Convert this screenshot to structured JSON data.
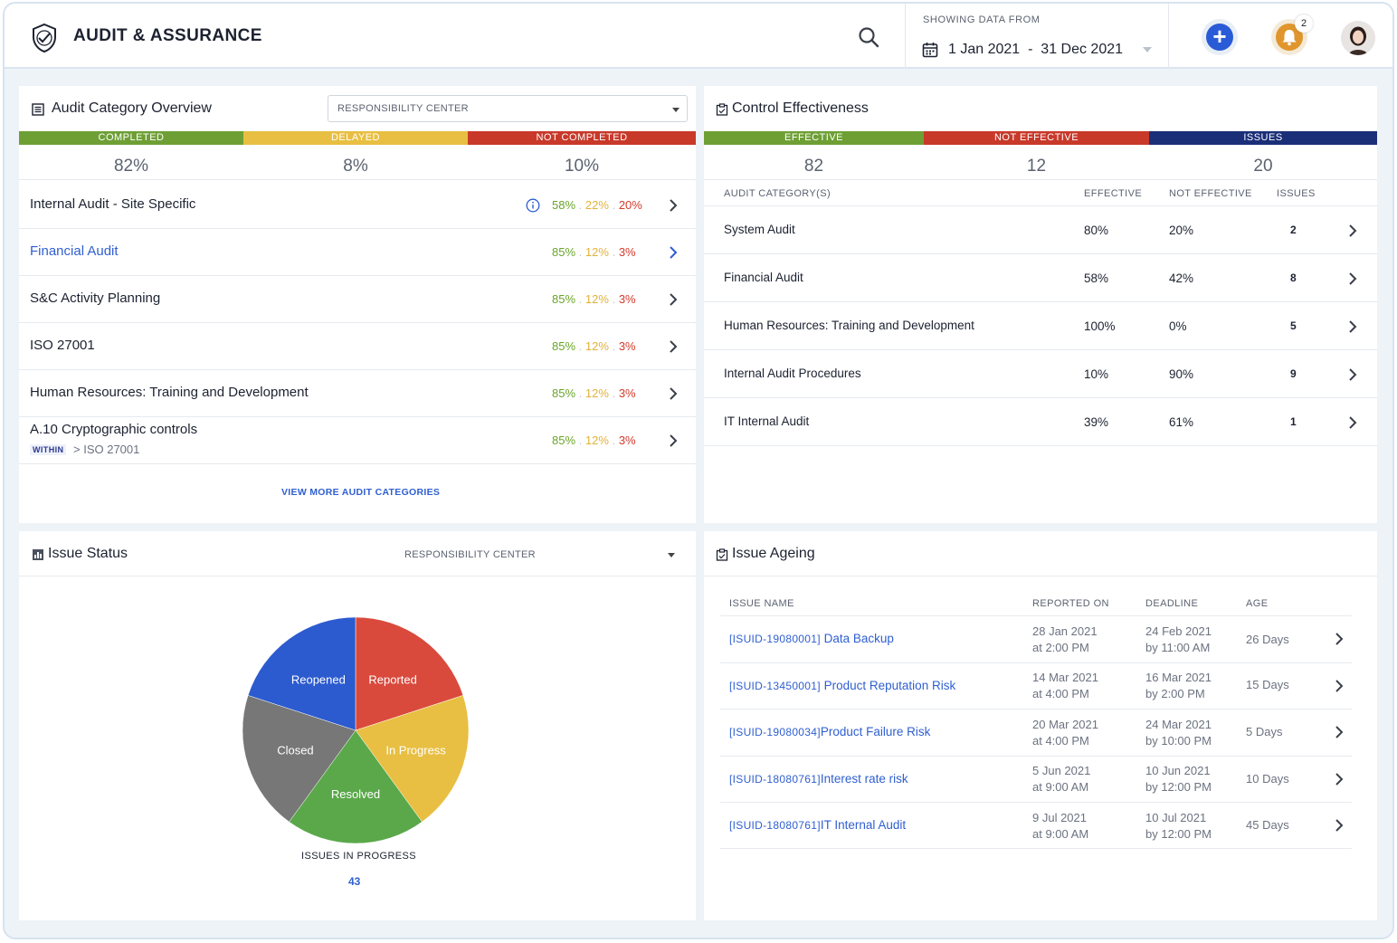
{
  "header": {
    "app_title": "AUDIT & ASSURANCE",
    "date_caption": "SHOWING DATA FROM",
    "date_range": "1 Jan 2021  -  31 Dec 2021",
    "notification_count": "2"
  },
  "audit_overview": {
    "title": "Audit Category Overview",
    "filter": "RESPONSIBILITY CENTER",
    "status": [
      {
        "label": "COMPLETED",
        "value": "82%",
        "color": "#6e9f35"
      },
      {
        "label": "DELAYED",
        "value": "8%",
        "color": "#e8bf42"
      },
      {
        "label": "NOT COMPLETED",
        "value": "10%",
        "color": "#c8392a"
      }
    ],
    "rows": [
      {
        "name": "Internal Audit - Site Specific",
        "completed": "58%",
        "delayed": "22%",
        "not_completed": "20%"
      },
      {
        "name": "Financial Audit",
        "completed": "85%",
        "delayed": "12%",
        "not_completed": "3%"
      },
      {
        "name": "S&C Activity Planning",
        "completed": "85%",
        "delayed": "12%",
        "not_completed": "3%"
      },
      {
        "name": "ISO 27001",
        "completed": "85%",
        "delayed": "12%",
        "not_completed": "3%"
      },
      {
        "name": "Human Resources: Training and Development",
        "completed": "85%",
        "delayed": "12%",
        "not_completed": "3%"
      },
      {
        "name": "A.10 Cryptographic controls",
        "completed": "85%",
        "delayed": "12%",
        "not_completed": "3%",
        "within_label": "WITHIN",
        "within_path": "> ISO 27001"
      }
    ],
    "view_more": "VIEW MORE AUDIT CATEGORIES"
  },
  "control_effectiveness": {
    "title": "Control Effectiveness",
    "status": [
      {
        "label": "EFFECTIVE",
        "value": "82",
        "color": "#6e9f35"
      },
      {
        "label": "NOT EFFECTIVE",
        "value": "12",
        "color": "#c8392a"
      },
      {
        "label": "ISSUES",
        "value": "20",
        "color": "#1b2f78"
      }
    ],
    "columns": {
      "category": "AUDIT CATEGORY(S)",
      "effective": "EFFECTIVE",
      "not_effective": "NOT EFFECTIVE",
      "issues": "ISSUES"
    },
    "rows": [
      {
        "name": "System Audit",
        "effective": "80%",
        "not_effective": "20%",
        "issues": "2"
      },
      {
        "name": "Financial Audit",
        "effective": "58%",
        "not_effective": "42%",
        "issues": "8"
      },
      {
        "name": "Human Resources: Training and Development",
        "effective": "100%",
        "not_effective": "0%",
        "issues": "5"
      },
      {
        "name": "Internal Audit Procedures",
        "effective": "10%",
        "not_effective": "90%",
        "issues": "9"
      },
      {
        "name": "IT Internal Audit",
        "effective": "39%",
        "not_effective": "61%",
        "issues": "1"
      }
    ]
  },
  "issue_status": {
    "title": "Issue Status",
    "filter": "RESPONSIBILITY CENTER",
    "caption": "ISSUES IN PROGRESS",
    "count": "43",
    "chart_data": {
      "type": "pie",
      "slices": [
        {
          "label": "Reported",
          "value": 20,
          "color": "#d94a3d"
        },
        {
          "label": "In Progress",
          "value": 20,
          "color": "#e8bf42"
        },
        {
          "label": "Resolved",
          "value": 20,
          "color": "#5aa84a"
        },
        {
          "label": "Closed",
          "value": 20,
          "color": "#777777"
        },
        {
          "label": "Reopened",
          "value": 20,
          "color": "#2c5bcf"
        }
      ]
    }
  },
  "issue_ageing": {
    "title": "Issue Ageing",
    "columns": {
      "name": "ISSUE NAME",
      "reported": "REPORTED ON",
      "deadline": "DEADLINE",
      "age": "AGE"
    },
    "rows": [
      {
        "id": "[ISUID-19080001]",
        "name": "Data Backup",
        "reported_date": "28 Jan 2021",
        "reported_time": "at 2:00 PM",
        "deadline_date": "24 Feb 2021",
        "deadline_time": "by 11:00 AM",
        "age": "26 Days"
      },
      {
        "id": "[ISUID-13450001]",
        "name": "Product Reputation Risk",
        "reported_date": "14 Mar 2021",
        "reported_time": "at 4:00 PM",
        "deadline_date": "16 Mar 2021",
        "deadline_time": "by 2:00 PM",
        "age": "15 Days"
      },
      {
        "id": "[ISUID-19080034]",
        "name": "Product Failure Risk",
        "reported_date": "20 Mar 2021",
        "reported_time": "at 4:00 PM",
        "deadline_date": "24 Mar 2021",
        "deadline_time": "by 10:00 PM",
        "age": "5 Days"
      },
      {
        "id": "[ISUID-18080761]",
        "name": "Interest rate risk",
        "reported_date": "5 Jun 2021",
        "reported_time": "at 9:00 AM",
        "deadline_date": "10 Jun 2021",
        "deadline_time": "by 12:00 PM",
        "age": "10 Days"
      },
      {
        "id": "[ISUID-18080761]",
        "name": "IT Internal Audit",
        "reported_date": "9 Jul 2021",
        "reported_time": "at 9:00 AM",
        "deadline_date": "10 Jul 2021",
        "deadline_time": "by 12:00 PM",
        "age": "45 Days"
      }
    ]
  }
}
